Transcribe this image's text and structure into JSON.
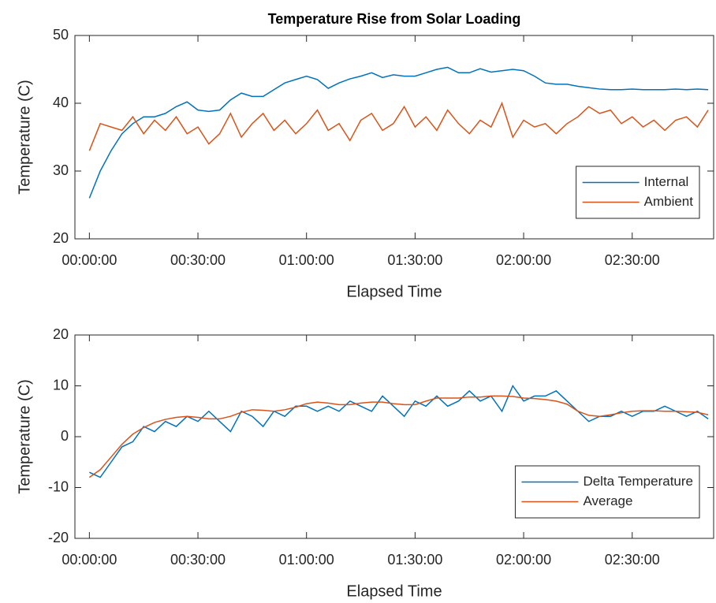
{
  "chart_data": [
    {
      "type": "line",
      "title": "Temperature Rise from Solar Loading",
      "xlabel": "Elapsed Time",
      "ylabel": "Temperature (C)",
      "x": [
        0,
        3,
        6,
        9,
        12,
        15,
        18,
        21,
        24,
        27,
        30,
        33,
        36,
        39,
        42,
        45,
        48,
        51,
        54,
        57,
        60,
        63,
        66,
        69,
        72,
        75,
        78,
        81,
        84,
        87,
        90,
        93,
        96,
        99,
        102,
        105,
        108,
        111,
        114,
        117,
        120,
        123,
        126,
        129,
        132,
        135,
        138,
        141,
        144,
        147,
        150,
        153,
        156,
        159,
        162,
        165,
        168,
        171
      ],
      "series": [
        {
          "name": "Internal",
          "color": "#0072BD",
          "values": [
            26,
            30,
            33,
            35.5,
            37,
            38,
            38,
            38.5,
            39.5,
            40.2,
            39,
            38.8,
            39,
            40.5,
            41.5,
            41,
            41,
            42,
            43,
            43.5,
            44,
            43.5,
            42.2,
            43,
            43.6,
            44,
            44.5,
            43.8,
            44.2,
            44,
            44,
            44.5,
            45,
            45.3,
            44.5,
            44.5,
            45.1,
            44.6,
            44.8,
            45,
            44.8,
            44,
            43,
            42.8,
            42.8,
            42.5,
            42.3,
            42.1,
            42,
            42,
            42.1,
            42,
            42,
            42,
            42.1,
            42,
            42.1,
            42
          ]
        },
        {
          "name": "Ambient",
          "color": "#D95319",
          "values": [
            33,
            37,
            36.5,
            36,
            38,
            35.5,
            37.5,
            36,
            38,
            35.5,
            36.5,
            34,
            35.5,
            38.5,
            35,
            37,
            38.5,
            36,
            37.5,
            35.5,
            37,
            39,
            36,
            37,
            34.5,
            37.5,
            38.5,
            36,
            37,
            39.5,
            36.5,
            38,
            36,
            39,
            37,
            35.5,
            37.5,
            36.5,
            40,
            35,
            37.5,
            36.5,
            37,
            35.5,
            37,
            38,
            39.5,
            38.5,
            39,
            37,
            38,
            36.5,
            37.5,
            36,
            37.5,
            38,
            36.5,
            39
          ]
        }
      ],
      "xlim": [
        -4,
        172.5
      ],
      "xticks": [
        {
          "value": 0,
          "label": "00:00:00"
        },
        {
          "value": 30,
          "label": "00:30:00"
        },
        {
          "value": 60,
          "label": "01:00:00"
        },
        {
          "value": 90,
          "label": "01:30:00"
        },
        {
          "value": 120,
          "label": "02:00:00"
        },
        {
          "value": 150,
          "label": "02:30:00"
        }
      ],
      "ylim": [
        20,
        50
      ],
      "yticks": [
        20,
        30,
        40,
        50
      ],
      "legend": "southeast"
    },
    {
      "type": "line",
      "xlabel": "Elapsed Time",
      "ylabel": "Temperature (C)",
      "x": [
        0,
        3,
        6,
        9,
        12,
        15,
        18,
        21,
        24,
        27,
        30,
        33,
        36,
        39,
        42,
        45,
        48,
        51,
        54,
        57,
        60,
        63,
        66,
        69,
        72,
        75,
        78,
        81,
        84,
        87,
        90,
        93,
        96,
        99,
        102,
        105,
        108,
        111,
        114,
        117,
        120,
        123,
        126,
        129,
        132,
        135,
        138,
        141,
        144,
        147,
        150,
        153,
        156,
        159,
        162,
        165,
        168,
        171
      ],
      "series": [
        {
          "name": "Delta Temperature",
          "color": "#0072BD",
          "values": [
            -7,
            -8,
            -5,
            -2,
            -1,
            2,
            1,
            3,
            2,
            4,
            3,
            5,
            3,
            1,
            5,
            4,
            2,
            5,
            4,
            6,
            6,
            5,
            6,
            5,
            7,
            6,
            5,
            8,
            6,
            4,
            7,
            6,
            8,
            6,
            7,
            9,
            7,
            8,
            5,
            10,
            7,
            8,
            8,
            9,
            7,
            5,
            3,
            4,
            4,
            5,
            4,
            5,
            5,
            6,
            5,
            4,
            5,
            3.5
          ]
        },
        {
          "name": "Average",
          "color": "#D95319",
          "values": [
            -8,
            -6.5,
            -4,
            -1.5,
            0.5,
            1.8,
            2.8,
            3.4,
            3.8,
            4,
            3.8,
            3.5,
            3.5,
            4,
            4.8,
            5.3,
            5.2,
            5,
            5.3,
            5.8,
            6.5,
            6.8,
            6.6,
            6.3,
            6.3,
            6.6,
            6.8,
            6.8,
            6.5,
            6.3,
            6.3,
            7,
            7.6,
            7.6,
            7.6,
            7.8,
            7.8,
            8,
            8,
            7.9,
            7.6,
            7.5,
            7.3,
            7,
            6.4,
            5,
            4.2,
            4,
            4.3,
            4.7,
            5,
            5.1,
            5.1,
            5,
            5,
            4.9,
            4.8,
            4.3
          ]
        }
      ],
      "xlim": [
        -4,
        172.5
      ],
      "xticks": [
        {
          "value": 0,
          "label": "00:00:00"
        },
        {
          "value": 30,
          "label": "00:30:00"
        },
        {
          "value": 60,
          "label": "01:00:00"
        },
        {
          "value": 90,
          "label": "01:30:00"
        },
        {
          "value": 120,
          "label": "02:00:00"
        },
        {
          "value": 150,
          "label": "02:30:00"
        }
      ],
      "ylim": [
        -20,
        20
      ],
      "yticks": [
        -20,
        -10,
        0,
        10,
        20
      ],
      "legend": "southeast"
    }
  ]
}
